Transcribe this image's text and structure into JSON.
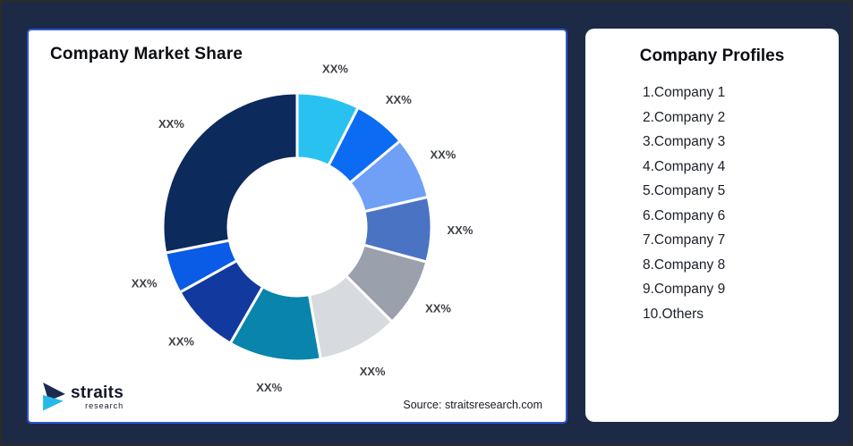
{
  "frame": {
    "bg": "#1D2A45",
    "outer_border": "#2B2B2B"
  },
  "left_card": {
    "title": "Company Market Share",
    "source": "Source: straitsresearch.com",
    "border_color": "#2E55D4",
    "logo": {
      "brand": "straits",
      "sub": "research",
      "navy_color": "#1B2B4D",
      "cyan_color": "#29B8E8"
    }
  },
  "right_card": {
    "title": "Company Profiles",
    "items": [
      "1.Company 1",
      "2.Company 2",
      "3.Company 3",
      "4.Company 4",
      "5.Company 5",
      "6.Company 6",
      "7.Company 7",
      "8.Company 8",
      "9.Company 9",
      "10.Others"
    ]
  },
  "chart_data": {
    "type": "pie",
    "variant": "donut",
    "title": "Company Market Share",
    "start_angle_deg": 0,
    "clockwise": true,
    "donut_hole_ratio": 0.51,
    "data_label_text": "XX%",
    "note": "All slice labels show placeholder XX%; percentages below estimated from arc angles",
    "segments": [
      {
        "name": "Company 1",
        "label": "XX%",
        "pct_estimated": 7.5,
        "color": "#29C2F0"
      },
      {
        "name": "Company 2",
        "label": "XX%",
        "pct_estimated": 6.4,
        "color": "#0B6CF3"
      },
      {
        "name": "Company 3",
        "label": "XX%",
        "pct_estimated": 7.5,
        "color": "#6FA0F5"
      },
      {
        "name": "Company 4",
        "label": "XX%",
        "pct_estimated": 7.8,
        "color": "#4A73C4"
      },
      {
        "name": "Company 5",
        "label": "XX%",
        "pct_estimated": 8.3,
        "color": "#9AA0AC"
      },
      {
        "name": "Company 6",
        "label": "XX%",
        "pct_estimated": 9.7,
        "color": "#D7DADF"
      },
      {
        "name": "Company 7",
        "label": "XX%",
        "pct_estimated": 11.1,
        "color": "#0884AD"
      },
      {
        "name": "Company 8",
        "label": "XX%",
        "pct_estimated": 8.6,
        "color": "#11399E"
      },
      {
        "name": "Company 9",
        "label": "XX%",
        "pct_estimated": 5.0,
        "color": "#0A5BE5"
      },
      {
        "name": "Others",
        "label": "XX%",
        "pct_estimated": 28.1,
        "color": "#0D2A5C"
      }
    ]
  }
}
